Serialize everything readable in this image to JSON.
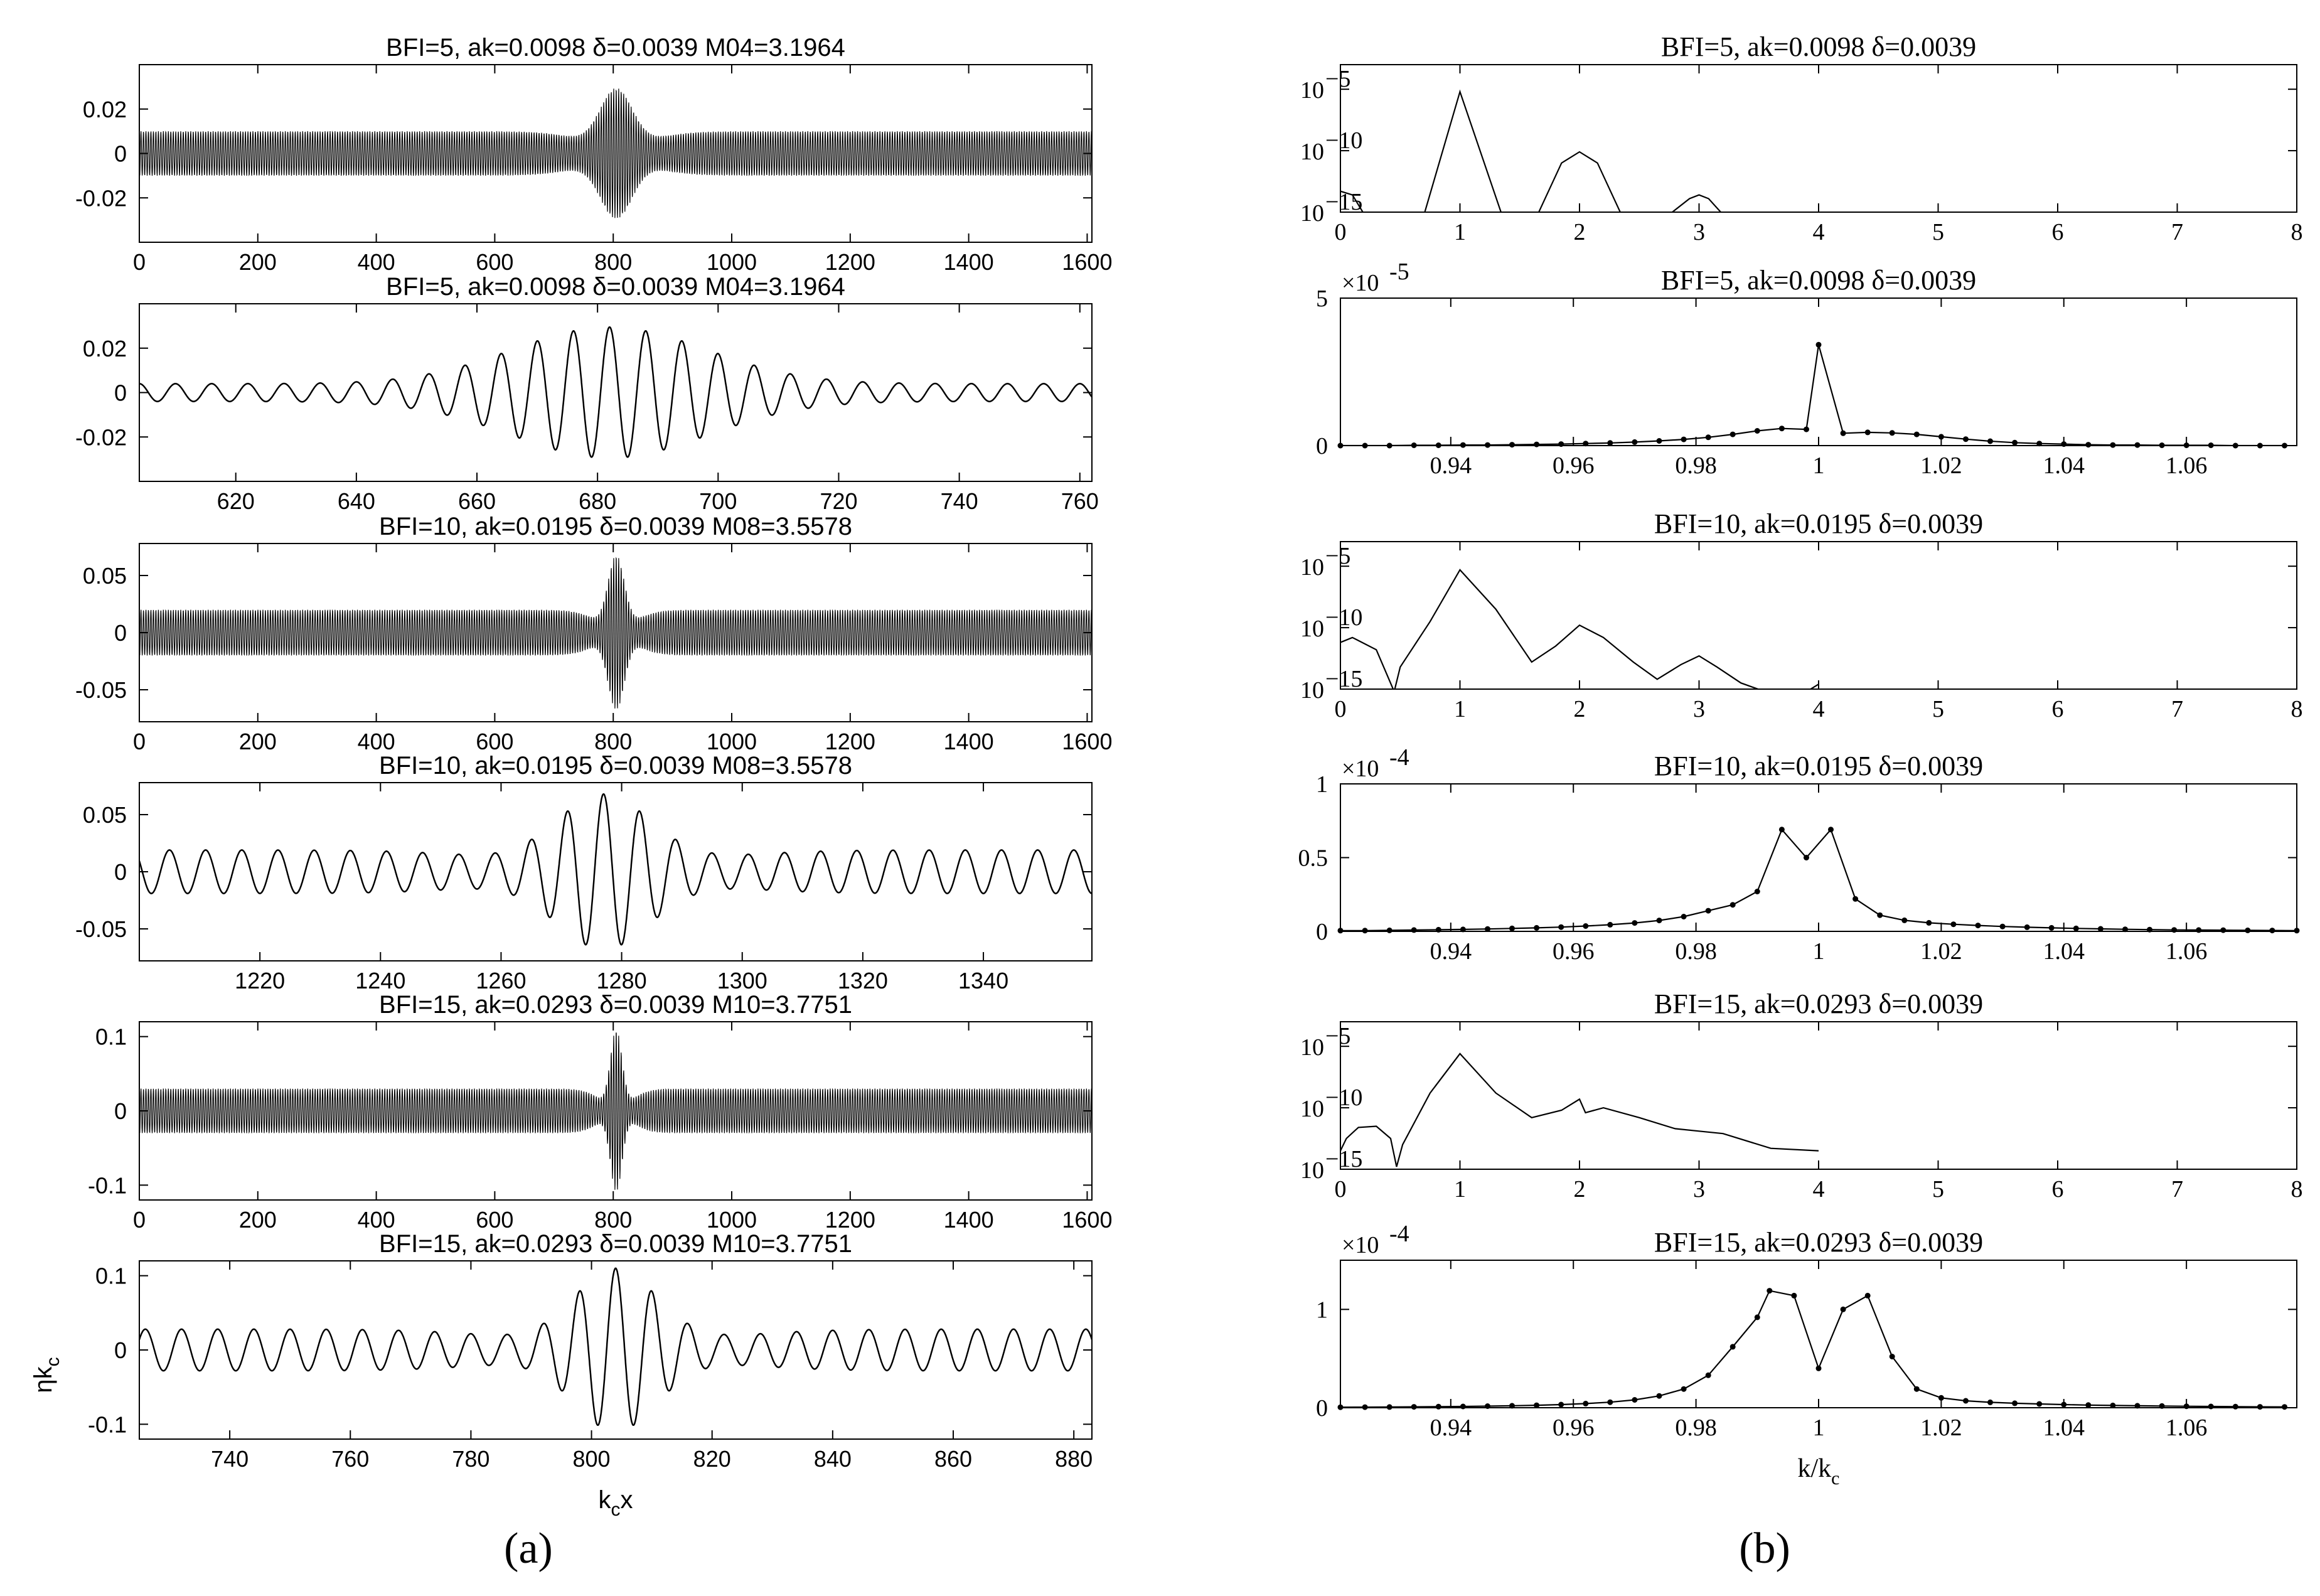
{
  "panel_labels": {
    "a": "(a)",
    "b": "(b)"
  },
  "chart_data": [
    {
      "id": "a1",
      "type": "line",
      "title": "BFI=5,  ak=0.0098   δ=0.0039   M04=3.1964",
      "xlim": [
        0,
        1608
      ],
      "ylim": [
        -0.04,
        0.04
      ],
      "xticks": [
        0,
        200,
        400,
        600,
        800,
        1000,
        1200,
        1400,
        1600
      ],
      "yticks": [
        -0.02,
        0,
        0.02
      ],
      "ytick_labels": [
        "-0.02",
        "0",
        "0.02"
      ],
      "wave": {
        "background_amplitude": 0.01,
        "peak_amplitude": 0.0295,
        "center": 805,
        "packet_width": 28,
        "trough_width": 60,
        "trough_depth": 0.6,
        "period": 4.2
      }
    },
    {
      "id": "a2",
      "type": "line",
      "title": "BFI=5,  ak=0.0098   δ=0.0039   M04=3.1964",
      "xlim": [
        604,
        762
      ],
      "ylim": [
        -0.04,
        0.04
      ],
      "xticks": [
        620,
        640,
        660,
        680,
        700,
        720,
        740,
        760
      ],
      "yticks": [
        -0.02,
        0,
        0.02
      ],
      "ytick_labels": [
        "-0.02",
        "0",
        "0.02"
      ],
      "wave": {
        "background_amplitude": 0.004,
        "peak_amplitude": 0.0295,
        "center": 682,
        "packet_width": 16,
        "trough_width": 0,
        "trough_depth": 0,
        "period": 6.0
      }
    },
    {
      "id": "a3",
      "type": "line",
      "title": "BFI=10,  ak=0.0195   δ=0.0039   M08=3.5578",
      "xlim": [
        0,
        1608
      ],
      "ylim": [
        -0.078,
        0.078
      ],
      "xticks": [
        0,
        200,
        400,
        600,
        800,
        1000,
        1200,
        1400,
        1600
      ],
      "yticks": [
        -0.05,
        0,
        0.05
      ],
      "ytick_labels": [
        "-0.05",
        "0",
        "0.05"
      ],
      "wave": {
        "background_amplitude": 0.02,
        "peak_amplitude": 0.068,
        "center": 805,
        "packet_width": 14,
        "trough_width": 35,
        "trough_depth": 0.7,
        "period": 4.2
      }
    },
    {
      "id": "a4",
      "type": "line",
      "title": "BFI=10,  ak=0.0195   δ=0.0039   M08=3.5578",
      "xlim": [
        1200,
        1358
      ],
      "ylim": [
        -0.078,
        0.078
      ],
      "xticks": [
        1220,
        1240,
        1260,
        1280,
        1300,
        1320,
        1340
      ],
      "yticks": [
        -0.05,
        0,
        0.05
      ],
      "ytick_labels": [
        "-0.05",
        "0",
        "0.05"
      ],
      "wave": {
        "background_amplitude": 0.019,
        "peak_amplitude": 0.068,
        "center": 1277,
        "packet_width": 8,
        "trough_width": 16,
        "trough_depth": 0.7,
        "period": 6.0
      }
    },
    {
      "id": "a5",
      "type": "line",
      "title": "BFI=15,  ak=0.0293   δ=0.0039   M10=3.7751",
      "xlim": [
        0,
        1608
      ],
      "ylim": [
        -0.12,
        0.12
      ],
      "xticks": [
        0,
        200,
        400,
        600,
        800,
        1000,
        1200,
        1400,
        1600
      ],
      "yticks": [
        -0.1,
        0,
        0.1
      ],
      "ytick_labels": [
        "-0.1",
        "0",
        "0.1"
      ],
      "wave": {
        "background_amplitude": 0.03,
        "peak_amplitude": 0.11,
        "center": 805,
        "packet_width": 10,
        "trough_width": 28,
        "trough_depth": 0.75,
        "period": 4.2
      }
    },
    {
      "id": "a6",
      "type": "line",
      "title": "BFI=15,  ak=0.0293   δ=0.0039   M10=3.7751",
      "xlim": [
        725,
        883
      ],
      "ylim": [
        -0.12,
        0.12
      ],
      "xticks": [
        740,
        760,
        780,
        800,
        820,
        840,
        860,
        880
      ],
      "yticks": [
        -0.1,
        0,
        0.1
      ],
      "ytick_labels": [
        "-0.1",
        "0",
        "0.1"
      ],
      "xlabel": "k_c x",
      "ylabel": "ηk_c",
      "wave": {
        "background_amplitude": 0.028,
        "peak_amplitude": 0.11,
        "center": 804,
        "packet_width": 7,
        "trough_width": 16,
        "trough_depth": 0.7,
        "period": 6.0
      }
    },
    {
      "id": "b1",
      "type": "line",
      "yscale": "log",
      "title": "BFI=5,  ak=0.0098  δ=0.0039",
      "xlim": [
        0,
        8
      ],
      "ylim_exp": [
        -15,
        -3
      ],
      "xticks": [
        0,
        1,
        2,
        3,
        4,
        5,
        6,
        7,
        8
      ],
      "yticks_exp": [
        -15,
        -10,
        -5
      ],
      "spectrum_points": [
        [
          0,
          -13.3
        ],
        [
          0.1,
          -13.6
        ],
        [
          0.2,
          -15.2
        ],
        [
          0.7,
          -15.2
        ],
        [
          1.0,
          -5.2
        ],
        [
          1.35,
          -15.2
        ],
        [
          1.65,
          -15.2
        ],
        [
          1.85,
          -11.0
        ],
        [
          2.0,
          -10.1
        ],
        [
          2.15,
          -11.0
        ],
        [
          2.35,
          -15.2
        ],
        [
          2.75,
          -15.2
        ],
        [
          2.92,
          -13.9
        ],
        [
          3.0,
          -13.6
        ],
        [
          3.08,
          -13.9
        ],
        [
          3.2,
          -15.2
        ]
      ]
    },
    {
      "id": "b2",
      "type": "line",
      "title": "BFI=5,  ak=0.0098  δ=0.0039",
      "scale_label": "×10",
      "scale_exp": "-5",
      "xlim": [
        0.922,
        1.078
      ],
      "ylim": [
        0,
        5
      ],
      "xticks": [
        0.94,
        0.96,
        0.98,
        1,
        1.02,
        1.04,
        1.06
      ],
      "yticks": [
        0,
        5
      ],
      "x": [
        0.922,
        0.926,
        0.93,
        0.934,
        0.938,
        0.942,
        0.946,
        0.95,
        0.954,
        0.958,
        0.962,
        0.966,
        0.97,
        0.974,
        0.978,
        0.982,
        0.986,
        0.99,
        0.994,
        0.998,
        1.0,
        1.004,
        1.008,
        1.012,
        1.016,
        1.02,
        1.024,
        1.028,
        1.032,
        1.036,
        1.04,
        1.044,
        1.048,
        1.052,
        1.056,
        1.06,
        1.064,
        1.068,
        1.072,
        1.076
      ],
      "y": [
        0,
        0,
        0,
        0.01,
        0.01,
        0.02,
        0.02,
        0.03,
        0.04,
        0.05,
        0.07,
        0.09,
        0.12,
        0.16,
        0.21,
        0.28,
        0.38,
        0.5,
        0.58,
        0.55,
        3.42,
        0.42,
        0.45,
        0.43,
        0.38,
        0.3,
        0.22,
        0.15,
        0.1,
        0.07,
        0.05,
        0.03,
        0.02,
        0.02,
        0.01,
        0.01,
        0.01,
        0,
        0,
        0
      ]
    },
    {
      "id": "b3",
      "type": "line",
      "yscale": "log",
      "title": "BFI=10,  ak=0.0195  δ=0.0039",
      "xlim": [
        0,
        8
      ],
      "ylim_exp": [
        -15,
        -3
      ],
      "xticks": [
        0,
        1,
        2,
        3,
        4,
        5,
        6,
        7,
        8
      ],
      "yticks_exp": [
        -15,
        -10,
        -5
      ],
      "spectrum_points": [
        [
          0,
          -11.2
        ],
        [
          0.1,
          -10.8
        ],
        [
          0.3,
          -11.8
        ],
        [
          0.45,
          -15.2
        ],
        [
          0.5,
          -13.2
        ],
        [
          0.75,
          -9.5
        ],
        [
          1.0,
          -5.3
        ],
        [
          1.3,
          -8.5
        ],
        [
          1.6,
          -12.8
        ],
        [
          1.8,
          -11.5
        ],
        [
          2.0,
          -9.8
        ],
        [
          2.2,
          -10.8
        ],
        [
          2.45,
          -12.8
        ],
        [
          2.65,
          -14.2
        ],
        [
          2.85,
          -13.0
        ],
        [
          3.0,
          -12.3
        ],
        [
          3.15,
          -13.2
        ],
        [
          3.35,
          -14.5
        ],
        [
          3.55,
          -15.2
        ],
        [
          3.9,
          -15.2
        ],
        [
          4.0,
          -14.6
        ]
      ]
    },
    {
      "id": "b4",
      "type": "line",
      "title": "BFI=10,  ak=0.0195  δ=0.0039",
      "scale_label": "×10",
      "scale_exp": "-4",
      "xlim": [
        0.922,
        1.078
      ],
      "ylim": [
        0,
        1
      ],
      "xticks": [
        0.94,
        0.96,
        0.98,
        1,
        1.02,
        1.04,
        1.06
      ],
      "yticks": [
        0,
        0.5,
        1
      ],
      "x": [
        0.922,
        0.926,
        0.93,
        0.934,
        0.938,
        0.942,
        0.946,
        0.95,
        0.954,
        0.958,
        0.962,
        0.966,
        0.97,
        0.974,
        0.978,
        0.982,
        0.986,
        0.99,
        0.994,
        0.998,
        1.002,
        1.006,
        1.01,
        1.014,
        1.018,
        1.022,
        1.026,
        1.03,
        1.034,
        1.038,
        1.042,
        1.046,
        1.05,
        1.054,
        1.058,
        1.062,
        1.066,
        1.07,
        1.074,
        1.078
      ],
      "y": [
        0.005,
        0.005,
        0.007,
        0.009,
        0.011,
        0.013,
        0.016,
        0.02,
        0.024,
        0.029,
        0.036,
        0.045,
        0.057,
        0.074,
        0.1,
        0.14,
        0.18,
        0.27,
        0.69,
        0.5,
        0.69,
        0.22,
        0.11,
        0.075,
        0.058,
        0.048,
        0.04,
        0.033,
        0.028,
        0.024,
        0.02,
        0.017,
        0.014,
        0.012,
        0.01,
        0.009,
        0.008,
        0.007,
        0.006,
        0.005
      ]
    },
    {
      "id": "b5",
      "type": "line",
      "yscale": "log",
      "title": "BFI=15,  ak=0.0293  δ=0.0039",
      "xlim": [
        0,
        8
      ],
      "ylim_exp": [
        -15,
        -3
      ],
      "xticks": [
        0,
        1,
        2,
        3,
        4,
        5,
        6,
        7,
        8
      ],
      "yticks_exp": [
        -15,
        -10,
        -5
      ],
      "spectrum_points": [
        [
          0,
          -13.5
        ],
        [
          0.05,
          -12.5
        ],
        [
          0.15,
          -11.6
        ],
        [
          0.3,
          -11.5
        ],
        [
          0.42,
          -12.5
        ],
        [
          0.47,
          -14.8
        ],
        [
          0.52,
          -13.0
        ],
        [
          0.75,
          -8.8
        ],
        [
          1.0,
          -5.6
        ],
        [
          1.3,
          -8.8
        ],
        [
          1.6,
          -10.8
        ],
        [
          1.85,
          -10.2
        ],
        [
          2.0,
          -9.3
        ],
        [
          2.05,
          -10.4
        ],
        [
          2.2,
          -10.0
        ],
        [
          2.5,
          -10.8
        ],
        [
          2.8,
          -11.7
        ],
        [
          3.0,
          -11.9
        ],
        [
          3.2,
          -12.1
        ],
        [
          3.6,
          -13.3
        ],
        [
          4.0,
          -13.5
        ]
      ]
    },
    {
      "id": "b6",
      "type": "line",
      "title": "BFI=15,  ak=0.0293  δ=0.0039",
      "scale_label": "×10",
      "scale_exp": "-4",
      "xlim": [
        0.922,
        1.078
      ],
      "ylim": [
        0,
        1.5
      ],
      "xticks": [
        0.94,
        0.96,
        0.98,
        1,
        1.02,
        1.04,
        1.06
      ],
      "yticks": [
        0,
        1
      ],
      "xlabel": "k/k_c",
      "x": [
        0.922,
        0.926,
        0.93,
        0.934,
        0.938,
        0.942,
        0.946,
        0.95,
        0.954,
        0.958,
        0.962,
        0.966,
        0.97,
        0.974,
        0.978,
        0.982,
        0.986,
        0.99,
        0.992,
        0.996,
        1.0,
        1.004,
        1.008,
        1.012,
        1.016,
        1.02,
        1.024,
        1.028,
        1.032,
        1.036,
        1.04,
        1.044,
        1.048,
        1.052,
        1.056,
        1.06,
        1.064,
        1.068,
        1.072,
        1.076
      ],
      "y": [
        0.005,
        0.006,
        0.007,
        0.009,
        0.011,
        0.013,
        0.016,
        0.02,
        0.025,
        0.032,
        0.042,
        0.056,
        0.08,
        0.12,
        0.19,
        0.33,
        0.62,
        0.92,
        1.19,
        1.14,
        0.4,
        1.0,
        1.14,
        0.52,
        0.19,
        0.1,
        0.07,
        0.055,
        0.045,
        0.038,
        0.032,
        0.027,
        0.023,
        0.02,
        0.017,
        0.015,
        0.013,
        0.011,
        0.009,
        0.008
      ]
    }
  ]
}
